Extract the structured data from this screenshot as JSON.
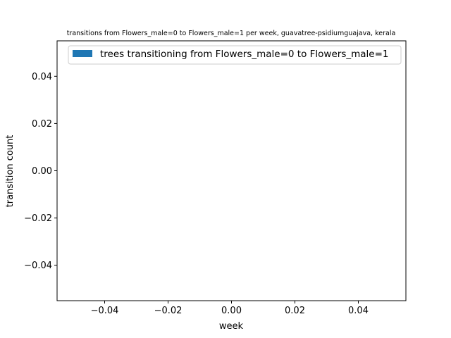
{
  "chart_data": {
    "type": "bar",
    "title": "transitions from Flowers_male=0 to Flowers_male=1 per week, guavatree-psidiumguajava, kerala",
    "xlabel": "week",
    "ylabel": "transition count",
    "xlim": [
      -0.055,
      0.055
    ],
    "ylim": [
      -0.055,
      0.055
    ],
    "xticks": [
      -0.04,
      -0.02,
      0.0,
      0.02,
      0.04
    ],
    "xtick_labels": [
      "−0.04",
      "−0.02",
      "0.00",
      "0.02",
      "0.04"
    ],
    "yticks": [
      -0.04,
      -0.02,
      0.0,
      0.02,
      0.04
    ],
    "ytick_labels": [
      "−0.04",
      "−0.02",
      "0.00",
      "0.02",
      "0.04"
    ],
    "grid": false,
    "legend_position": "top-right",
    "series": [
      {
        "name": "trees transitioning from Flowers_male=0 to Flowers_male=1",
        "color": "#1f77b4",
        "x": [],
        "values": []
      }
    ]
  }
}
